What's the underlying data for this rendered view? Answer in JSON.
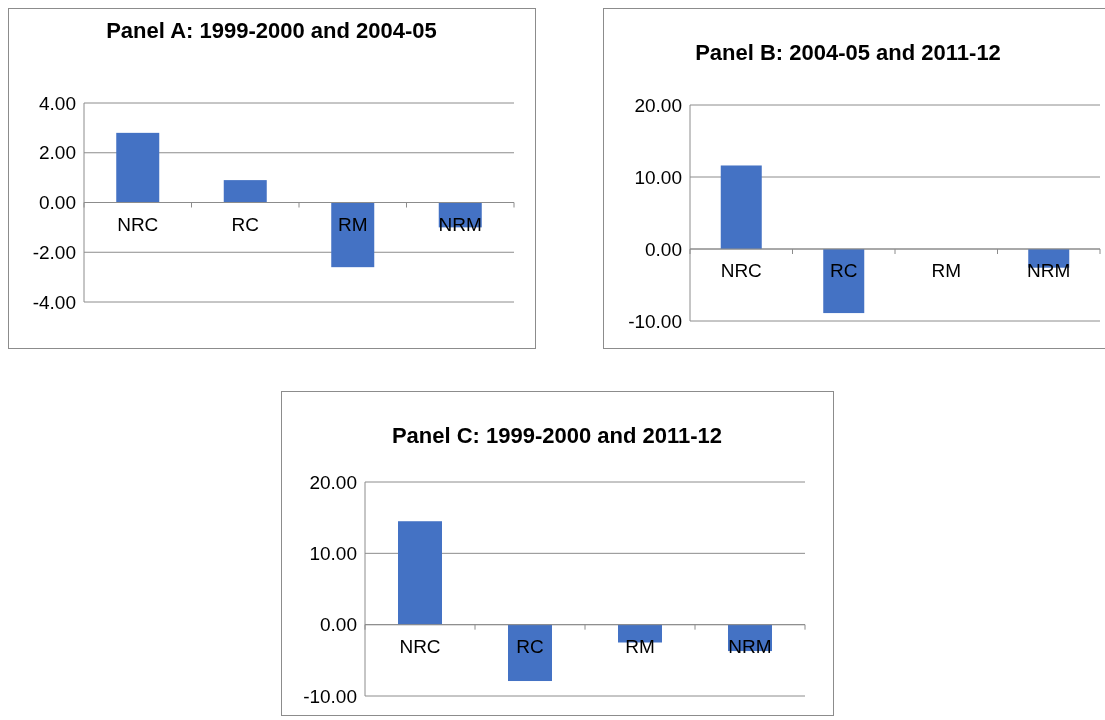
{
  "chart_data": [
    {
      "type": "bar",
      "title": "Panel A: 1999-2000 and 2004-05",
      "categories": [
        "NRC",
        "RC",
        "RM",
        "NRM"
      ],
      "values": [
        2.8,
        0.9,
        -2.6,
        -1.0
      ],
      "color": "#4472c4",
      "ylim": [
        -4,
        4
      ],
      "yticks": [
        {
          "value": -4,
          "label": "-4.00"
        },
        {
          "value": -2,
          "label": "-2.00"
        },
        {
          "value": 0,
          "label": "0.00"
        },
        {
          "value": 2,
          "label": "2.00"
        },
        {
          "value": 4,
          "label": "4.00"
        }
      ],
      "grid": "y"
    },
    {
      "type": "bar",
      "title": "Panel B: 2004-05 and 2011-12",
      "categories": [
        "NRC",
        "RC",
        "RM",
        "NRM"
      ],
      "values": [
        11.6,
        -8.9,
        0,
        -2.6
      ],
      "color": "#4472c4",
      "ylim": [
        -10,
        20
      ],
      "yticks": [
        {
          "value": -10,
          "label": "-10.00"
        },
        {
          "value": 0,
          "label": "0.00"
        },
        {
          "value": 10,
          "label": "10.00"
        },
        {
          "value": 20,
          "label": "20.00"
        }
      ],
      "grid": "y"
    },
    {
      "type": "bar",
      "title": "Panel C: 1999-2000 and 2011-12",
      "categories": [
        "NRC",
        "RC",
        "RM",
        "NRM"
      ],
      "values": [
        14.5,
        -7.9,
        -2.5,
        -3.7
      ],
      "color": "#4472c4",
      "ylim": [
        -10,
        20
      ],
      "yticks": [
        {
          "value": -10,
          "label": "-10.00"
        },
        {
          "value": 0,
          "label": "0.00"
        },
        {
          "value": 10,
          "label": "10.00"
        },
        {
          "value": 20,
          "label": "20.00"
        }
      ],
      "grid": "y"
    }
  ]
}
